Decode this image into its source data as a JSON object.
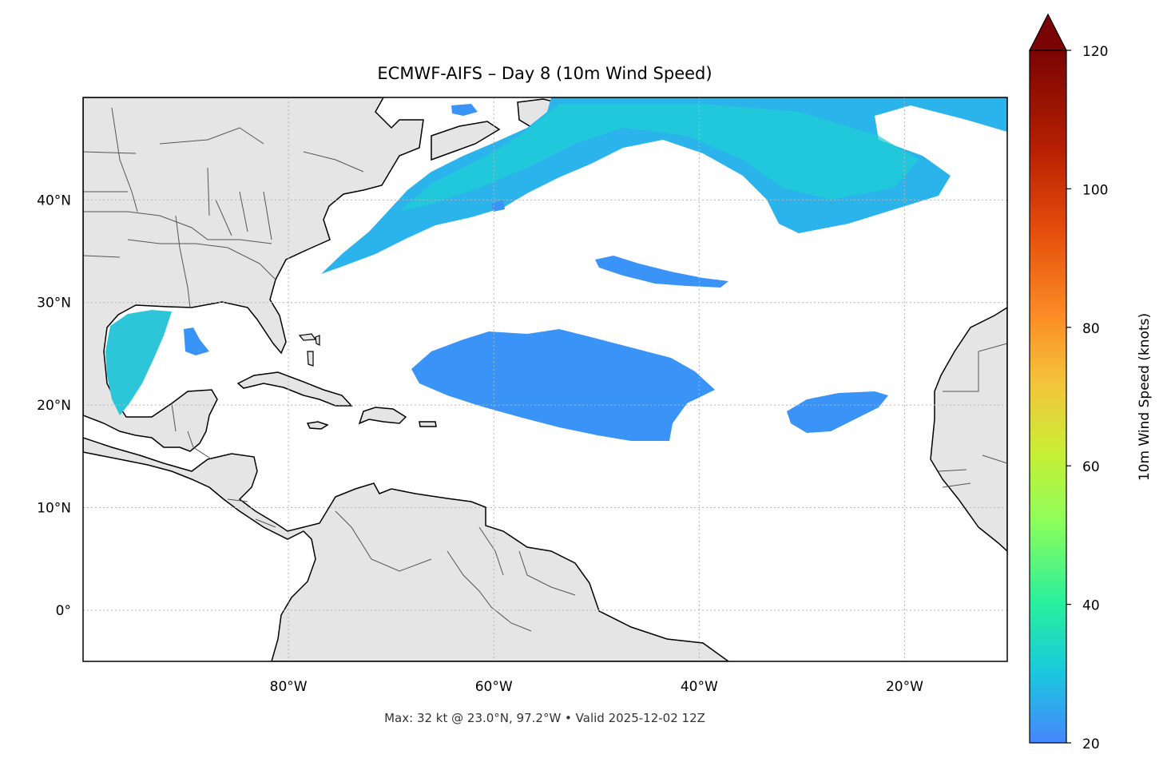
{
  "title": "ECMWF-AIFS – Day 8 (10m Wind Speed)",
  "footer": "Max: 32 kt @ 23.0°N, 97.2°W • Valid 2025-12-02 12Z",
  "map": {
    "projection": "PlateCarree",
    "extent": {
      "lon_min": -100,
      "lon_max": -10,
      "lat_min": -5,
      "lat_max": 50
    },
    "land_color": "#e5e5e5",
    "ocean_color": "#ffffff",
    "gridlines": "dotted",
    "lon_ticks": [
      {
        "lon": -80,
        "label": "80°W"
      },
      {
        "lon": -60,
        "label": "60°W"
      },
      {
        "lon": -40,
        "label": "40°W"
      },
      {
        "lon": -20,
        "label": "20°W"
      }
    ],
    "lat_ticks": [
      {
        "lat": 40,
        "label": "40°N"
      },
      {
        "lat": 30,
        "label": "30°N"
      },
      {
        "lat": 20,
        "label": "20°N"
      },
      {
        "lat": 10,
        "label": "10°N"
      },
      {
        "lat": 0,
        "label": "0°"
      }
    ]
  },
  "colorbar": {
    "label": "10m Wind Speed (knots)",
    "min": 20,
    "max": 120,
    "extend": "max",
    "ticks": [
      {
        "value": 20,
        "label": "20"
      },
      {
        "value": 40,
        "label": "40"
      },
      {
        "value": 60,
        "label": "60"
      },
      {
        "value": 80,
        "label": "80"
      },
      {
        "value": 100,
        "label": "100"
      },
      {
        "value": 120,
        "label": "120"
      }
    ],
    "colormap": "turbo",
    "extend_color": "#7a0403"
  },
  "max_point": {
    "value_kt": 32,
    "lat": 23.0,
    "lon": -97.2
  }
}
